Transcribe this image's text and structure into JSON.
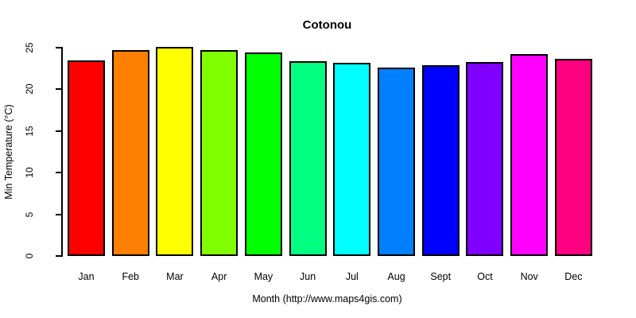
{
  "chart": {
    "title": "Cotonou",
    "xlabel": "Month (http://www.maps4gis.com)",
    "ylabel": "Min Temperature (°C)"
  },
  "chart_data": {
    "type": "bar",
    "title": "Cotonou",
    "xlabel": "Month (http://www.maps4gis.com)",
    "ylabel": "Min Temperature (°C)",
    "categories": [
      "Jan",
      "Feb",
      "Mar",
      "Apr",
      "May",
      "Jun",
      "Jul",
      "Aug",
      "Sept",
      "Oct",
      "Nov",
      "Dec"
    ],
    "values": [
      23.5,
      24.7,
      25.1,
      24.7,
      24.4,
      23.4,
      23.2,
      22.6,
      22.9,
      23.3,
      24.2,
      23.7
    ],
    "bar_colors": [
      "#FF0000",
      "#FF8000",
      "#FFFF00",
      "#80FF00",
      "#00FF00",
      "#00FF80",
      "#00FFFF",
      "#0080FF",
      "#0000FF",
      "#8000FF",
      "#FF00FF",
      "#FF0080"
    ],
    "bar_border_color": "#000000",
    "background_color": "#FFFFFF",
    "ylim": [
      0,
      25
    ],
    "yticks": [
      0,
      5,
      10,
      15,
      20,
      25
    ],
    "grid": false,
    "legend": null
  }
}
